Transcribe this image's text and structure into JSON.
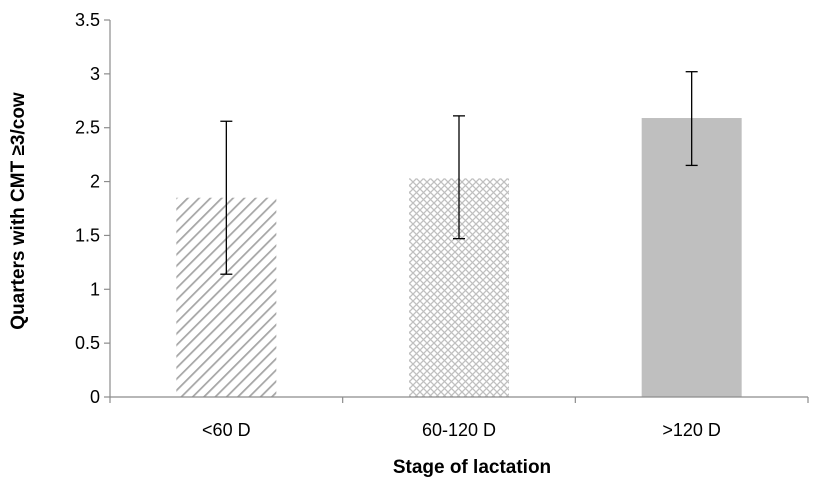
{
  "chart_data": {
    "type": "bar",
    "categories": [
      "<60 D",
      "60-120 D",
      ">120 D"
    ],
    "values": [
      1.85,
      2.03,
      2.59
    ],
    "error_low": [
      1.14,
      1.47,
      2.15
    ],
    "error_high": [
      2.56,
      2.61,
      3.02
    ],
    "xlabel": "Stage of lactation",
    "ylabel": "Quarters with CMT ≥3/cow",
    "ylim": [
      0,
      3.5
    ],
    "yticks": [
      "0",
      "0.5",
      "1",
      "1.5",
      "2",
      "2.5",
      "3",
      "3.5"
    ],
    "grid": false,
    "legend": "none",
    "bar_fills": [
      "diagonal-hatch",
      "crosshatch",
      "solid"
    ],
    "colors": {
      "hatch": "#a6a6a6",
      "crosshatch": "#bfbfbf",
      "solid": "#bfbfbf",
      "axis": "#8c8c8c",
      "error_bar": "#000000"
    }
  }
}
